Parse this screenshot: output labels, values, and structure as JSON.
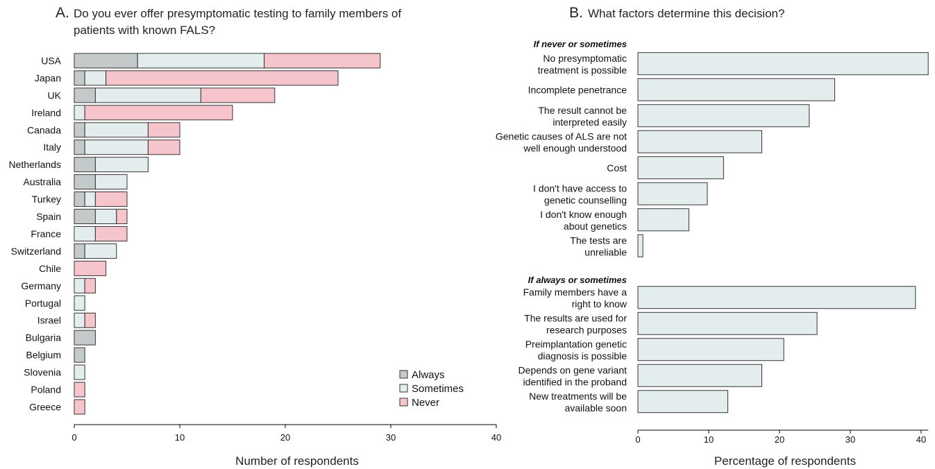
{
  "chart_data": [
    {
      "type": "bar",
      "orientation": "horizontal",
      "stacked": true,
      "panel_letter": "A.",
      "title_lines": [
        "Do you ever offer presymptomatic testing to family members of",
        "patients with known FALS?"
      ],
      "xlabel": "Number of respondents",
      "xlim": [
        0,
        40
      ],
      "xticks": [
        "0",
        "10",
        "20",
        "30",
        "40"
      ],
      "categories": [
        "USA",
        "Japan",
        "UK",
        "Ireland",
        "Canada",
        "Italy",
        "Netherlands",
        "Australia",
        "Turkey",
        "Spain",
        "France",
        "Switzerland",
        "Chile",
        "Germany",
        "Portugal",
        "Israel",
        "Bulgaria",
        "Belgium",
        "Slovenia",
        "Poland",
        "Greece"
      ],
      "series": [
        {
          "name": "Always",
          "color": "#c4c9c9",
          "values": [
            6,
            1,
            2,
            0,
            1,
            1,
            2,
            2,
            1,
            2,
            0,
            1,
            0,
            0,
            0,
            0,
            2,
            1,
            0,
            0,
            0
          ]
        },
        {
          "name": "Sometimes",
          "color": "#e4eded",
          "values": [
            12,
            2,
            10,
            1,
            6,
            6,
            5,
            3,
            1,
            2,
            2,
            3,
            0,
            1,
            1,
            1,
            0,
            0,
            1,
            0,
            0
          ]
        },
        {
          "name": "Never",
          "color": "#f6c4cb",
          "values": [
            11,
            22,
            7,
            14,
            3,
            3,
            0,
            0,
            3,
            1,
            3,
            0,
            3,
            1,
            0,
            1,
            0,
            0,
            0,
            1,
            1
          ]
        }
      ],
      "legend_position": "bottom-right"
    },
    {
      "type": "bar",
      "orientation": "horizontal",
      "panel_letter": "B.",
      "title_lines": [
        "What factors determine this decision?"
      ],
      "xlabel": "Percentage of respondents",
      "xlim": [
        0,
        41
      ],
      "xticks": [
        "0",
        "10",
        "20",
        "30",
        "40"
      ],
      "bar_color": "#e4eded",
      "groups": [
        {
          "label": "If never or sometimes",
          "items": [
            {
              "label": [
                "No presymptomatic",
                "treatment is possible"
              ],
              "value": 41
            },
            {
              "label": [
                "Incomplete penetrance"
              ],
              "value": 27.8
            },
            {
              "label": [
                "The result cannot be",
                "interpreted easily"
              ],
              "value": 24.2
            },
            {
              "label": [
                "Genetic causes of ALS are not",
                "well enough understood"
              ],
              "value": 17.5
            },
            {
              "label": [
                "Cost"
              ],
              "value": 12.1
            },
            {
              "label": [
                "I don't have access to",
                "genetic counselling"
              ],
              "value": 9.8
            },
            {
              "label": [
                "I don't know enough",
                "about genetics"
              ],
              "value": 7.2
            },
            {
              "label": [
                "The tests are",
                "unreliable"
              ],
              "value": 0.7
            }
          ]
        },
        {
          "label": "If always or sometimes",
          "items": [
            {
              "label": [
                "Family members have a",
                "right to know"
              ],
              "value": 39.2
            },
            {
              "label": [
                "The results are used for",
                "research purposes"
              ],
              "value": 25.3
            },
            {
              "label": [
                "Preimplantation genetic",
                "diagnosis is possible"
              ],
              "value": 20.6
            },
            {
              "label": [
                "Depends on gene variant",
                "identified in the proband"
              ],
              "value": 17.5
            },
            {
              "label": [
                "New treatments will be",
                "available soon"
              ],
              "value": 12.7
            }
          ]
        }
      ]
    }
  ]
}
